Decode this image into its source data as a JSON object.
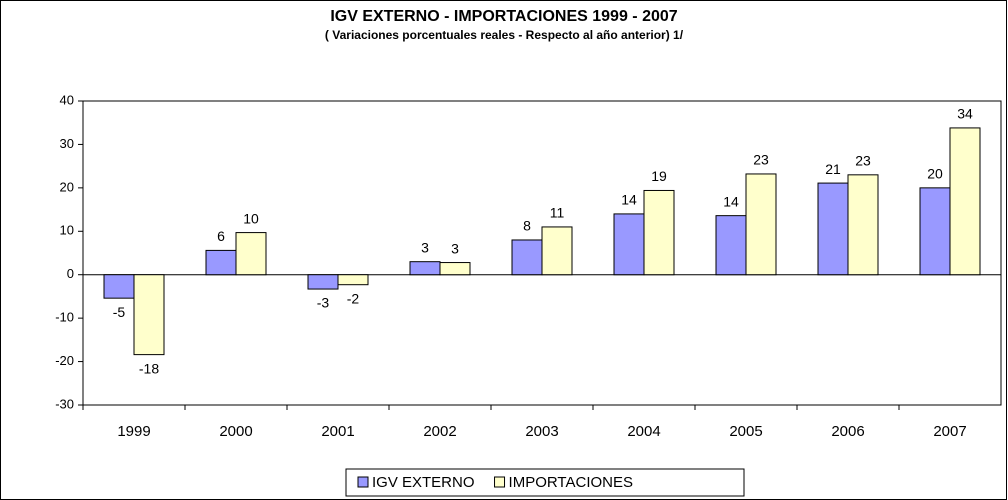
{
  "chart_data": {
    "type": "bar",
    "title": "IGV EXTERNO - IMPORTACIONES 1999 - 2007",
    "subtitle": "( Variaciones porcentuales reales - Respecto al año anterior) 1/",
    "categories": [
      "1999",
      "2000",
      "2001",
      "2002",
      "2003",
      "2004",
      "2005",
      "2006",
      "2007"
    ],
    "series": [
      {
        "name": "IGV EXTERNO",
        "color": "#9999ff",
        "values": [
          -5.4,
          5.6,
          -3.3,
          3.0,
          8.0,
          14.0,
          13.6,
          21.1,
          20.0
        ],
        "value_labels": [
          "-5",
          "6",
          "-3",
          "3",
          "8",
          "14",
          "14",
          "21",
          "20"
        ]
      },
      {
        "name": "IMPORTACIONES",
        "color": "#ffffcc",
        "values": [
          -18.4,
          9.7,
          -2.3,
          2.8,
          11.0,
          19.4,
          23.2,
          23.0,
          33.8
        ],
        "value_labels": [
          "-18",
          "10",
          "-2",
          "3",
          "11",
          "19",
          "23",
          "23",
          "34"
        ]
      }
    ],
    "ylim": [
      -30,
      40
    ],
    "yticks": [
      -30,
      -20,
      -10,
      0,
      10,
      20,
      30,
      40
    ],
    "grid": false,
    "legend": "bottom"
  }
}
